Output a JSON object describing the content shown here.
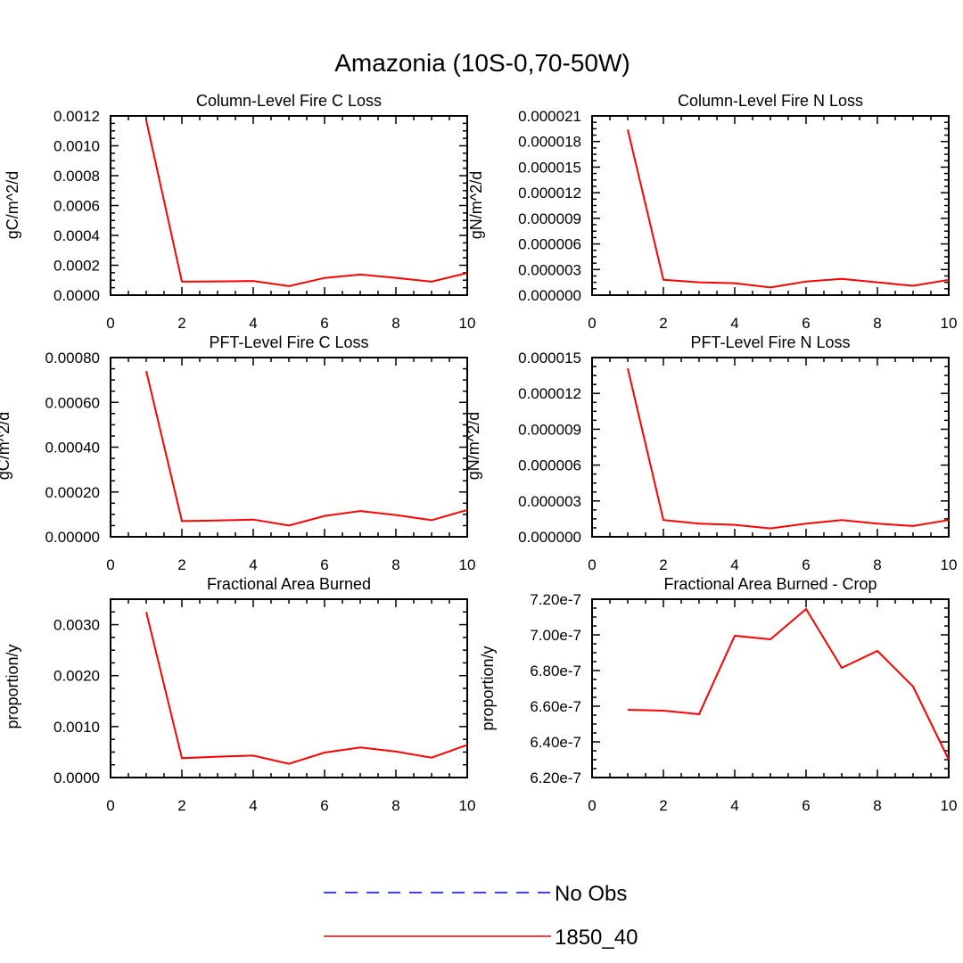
{
  "figure": {
    "title": "Amazonia (10S-0,70-50W)",
    "line_color": "#ff0000",
    "obs_color": "#0000ff"
  },
  "chart_data": [
    {
      "type": "line",
      "title": "Column-Level Fire C Loss",
      "xlabel": "",
      "ylabel": "gC/m^2/d",
      "xlim": [
        0,
        10
      ],
      "ylim": [
        0,
        0.0012
      ],
      "x_ticks": [
        "0",
        "2",
        "4",
        "6",
        "8",
        "10"
      ],
      "y_ticks": [
        "0.0000",
        "0.0002",
        "0.0004",
        "0.0006",
        "0.0008",
        "0.0010",
        "0.0012"
      ],
      "series": [
        {
          "name": "1850_40",
          "x": [
            1,
            2,
            3,
            4,
            5,
            6,
            7,
            8,
            9,
            10
          ],
          "values": [
            0.00117,
            9e-05,
            9.2e-05,
            9.5e-05,
            6e-05,
            0.000115,
            0.000138,
            0.000116,
            9e-05,
            0.000148
          ]
        }
      ]
    },
    {
      "type": "line",
      "title": "Column-Level Fire N Loss",
      "xlabel": "",
      "ylabel": "gN/m^2/d",
      "xlim": [
        0,
        10
      ],
      "ylim": [
        0,
        2.1e-05
      ],
      "x_ticks": [
        "0",
        "2",
        "4",
        "6",
        "8",
        "10"
      ],
      "y_ticks": [
        "0.000000",
        "0.000003",
        "0.000006",
        "0.000009",
        "0.000012",
        "0.000015",
        "0.000018",
        "0.000021"
      ],
      "series": [
        {
          "name": "1850_40",
          "x": [
            1,
            2,
            3,
            4,
            5,
            6,
            7,
            8,
            9,
            10
          ],
          "values": [
            1.94e-05,
            1.8e-06,
            1.5e-06,
            1.4e-06,
            9e-07,
            1.6e-06,
            1.9e-06,
            1.5e-06,
            1.1e-06,
            1.8e-06
          ]
        }
      ]
    },
    {
      "type": "line",
      "title": "PFT-Level Fire C Loss",
      "xlabel": "",
      "ylabel": "gC/m^2/d",
      "xlim": [
        0,
        10
      ],
      "ylim": [
        0,
        0.0008
      ],
      "x_ticks": [
        "0",
        "2",
        "4",
        "6",
        "8",
        "10"
      ],
      "y_ticks": [
        "0.00000",
        "0.00020",
        "0.00040",
        "0.00060",
        "0.00080"
      ],
      "series": [
        {
          "name": "1850_40",
          "x": [
            1,
            2,
            3,
            4,
            5,
            6,
            7,
            8,
            9,
            10
          ],
          "values": [
            0.00074,
            7e-05,
            7.3e-05,
            7.7e-05,
            5e-05,
            9.3e-05,
            0.000115,
            9.7e-05,
            7.4e-05,
            0.00012
          ]
        }
      ]
    },
    {
      "type": "line",
      "title": "PFT-Level Fire N Loss",
      "xlabel": "",
      "ylabel": "gN/m^2/d",
      "xlim": [
        0,
        10
      ],
      "ylim": [
        0,
        1.5e-05
      ],
      "x_ticks": [
        "0",
        "2",
        "4",
        "6",
        "8",
        "10"
      ],
      "y_ticks": [
        "0.000000",
        "0.000003",
        "0.000006",
        "0.000009",
        "0.000012",
        "0.000015"
      ],
      "series": [
        {
          "name": "1850_40",
          "x": [
            1,
            2,
            3,
            4,
            5,
            6,
            7,
            8,
            9,
            10
          ],
          "values": [
            1.41e-05,
            1.4e-06,
            1.1e-06,
            1e-06,
            7e-07,
            1.1e-06,
            1.4e-06,
            1.1e-06,
            9e-07,
            1.4e-06
          ]
        }
      ]
    },
    {
      "type": "line",
      "title": "Fractional Area Burned",
      "xlabel": "",
      "ylabel": "proportion/y",
      "xlim": [
        0,
        10
      ],
      "ylim": [
        0,
        0.0035
      ],
      "x_ticks": [
        "0",
        "2",
        "4",
        "6",
        "8",
        "10"
      ],
      "y_ticks": [
        "0.0000",
        "0.0010",
        "0.0020",
        "0.0030"
      ],
      "y_tick_values": [
        0,
        0.001,
        0.002,
        0.003
      ],
      "series": [
        {
          "name": "1850_40",
          "x": [
            1,
            2,
            3,
            4,
            5,
            6,
            7,
            8,
            9,
            10
          ],
          "values": [
            0.00325,
            0.00038,
            0.00041,
            0.00043,
            0.00027,
            0.00049,
            0.00059,
            0.00051,
            0.00039,
            0.00064
          ]
        }
      ]
    },
    {
      "type": "line",
      "title": "Fractional Area Burned - Crop",
      "xlabel": "",
      "ylabel": "proportion/y",
      "xlim": [
        0,
        10
      ],
      "ylim": [
        6.2e-07,
        7.2e-07
      ],
      "x_ticks": [
        "0",
        "2",
        "4",
        "6",
        "8",
        "10"
      ],
      "y_ticks": [
        "6.20e-7",
        "6.40e-7",
        "6.60e-7",
        "6.80e-7",
        "7.00e-7",
        "7.20e-7"
      ],
      "series": [
        {
          "name": "1850_40",
          "x": [
            1,
            2,
            3,
            4,
            5,
            6,
            7,
            8,
            9,
            10
          ],
          "values": [
            6.58e-07,
            6.575e-07,
            6.555e-07,
            6.995e-07,
            6.975e-07,
            7.145e-07,
            6.815e-07,
            6.91e-07,
            6.71e-07,
            6.3e-07
          ]
        }
      ]
    }
  ],
  "legend": {
    "items": [
      {
        "label": "No Obs",
        "style": "dashed",
        "color": "#0000ff"
      },
      {
        "label": "1850_40",
        "style": "solid",
        "color": "#ff0000"
      }
    ]
  }
}
